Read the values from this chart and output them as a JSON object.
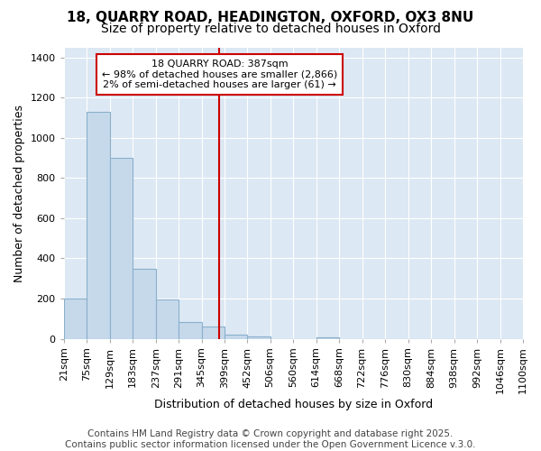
{
  "title_line1": "18, QUARRY ROAD, HEADINGTON, OXFORD, OX3 8NU",
  "title_line2": "Size of property relative to detached houses in Oxford",
  "xlabel": "Distribution of detached houses by size in Oxford",
  "ylabel": "Number of detached properties",
  "bin_edges": [
    21,
    75,
    129,
    183,
    237,
    291,
    345,
    399,
    452,
    506,
    560,
    614,
    668,
    722,
    776,
    830,
    884,
    938,
    992,
    1046,
    1100
  ],
  "bar_heights": [
    200,
    1130,
    900,
    350,
    195,
    85,
    60,
    20,
    10,
    0,
    0,
    5,
    0,
    0,
    0,
    0,
    0,
    0,
    0,
    0
  ],
  "bar_color": "#c6d9ea",
  "bar_edge_color": "#8ab0cc",
  "plot_bg_color": "#dce8f4",
  "fig_bg_color": "#ffffff",
  "property_size": 387,
  "property_label": "18 QUARRY ROAD: 387sqm",
  "annotation_line1": "← 98% of detached houses are smaller (2,866)",
  "annotation_line2": "2% of semi-detached houses are larger (61) →",
  "vline_color": "#cc0000",
  "annotation_text_color": "#000000",
  "ylim": [
    0,
    1450
  ],
  "yticks": [
    0,
    200,
    400,
    600,
    800,
    1000,
    1200,
    1400
  ],
  "footer_line1": "Contains HM Land Registry data © Crown copyright and database right 2025.",
  "footer_line2": "Contains public sector information licensed under the Open Government Licence v.3.0.",
  "title_fontsize": 11,
  "subtitle_fontsize": 10,
  "axis_label_fontsize": 9,
  "tick_fontsize": 8,
  "annotation_fontsize": 8,
  "footer_fontsize": 7.5
}
